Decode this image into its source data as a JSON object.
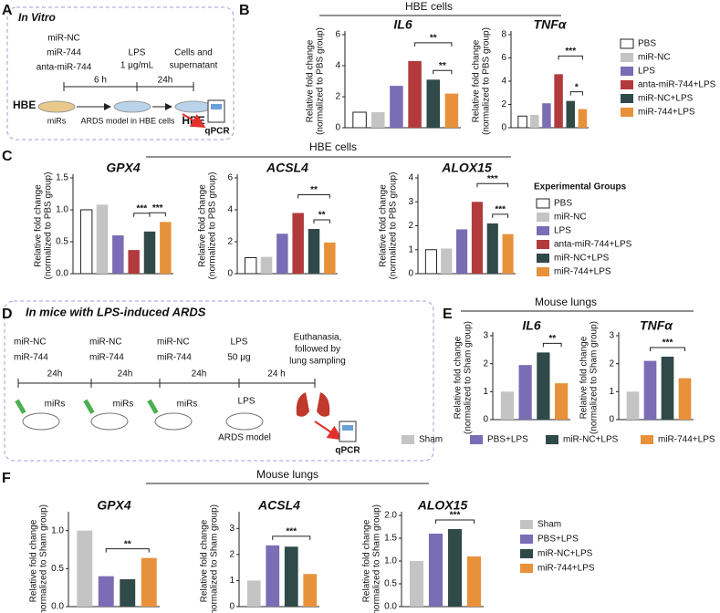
{
  "panel_labels": [
    "A",
    "B",
    "C",
    "D",
    "E",
    "F"
  ],
  "group_headers": [
    "HBE cells",
    "HBE cells",
    "Mouse lungs",
    "Mouse lungs"
  ],
  "panel_a": {
    "title": "In Vitro",
    "treatments": [
      "miR-NC",
      "miR-744",
      "anta-miR-744"
    ],
    "lps": "LPS",
    "lps_dose": "1 μg/mL",
    "cells": [
      "Cells and",
      "supernatant"
    ],
    "time1": "6 h",
    "time2": "24h",
    "hbe1": "HBE",
    "mirs": "miRs",
    "ards": "ARDS model in HBE cells",
    "hbe2": "HBE",
    "qpcr": "qPCR"
  },
  "panel_d": {
    "title": "In mice with LPS-induced ARDS",
    "treat1": [
      "miR-NC",
      "miR-744"
    ],
    "treat2": [
      "miR-NC",
      "miR-744"
    ],
    "treat3": [
      "miR-NC",
      "miR-744"
    ],
    "lps": [
      "LPS",
      "50 μg"
    ],
    "end": [
      "Euthanasia,",
      "followed by",
      "lung sampling"
    ],
    "times": [
      "24h",
      "24h",
      "24h",
      "24 h"
    ],
    "mirs": [
      "miRs",
      "miRs",
      "miRs"
    ],
    "lps_mouse": "LPS",
    "ards": "ARDS model",
    "qpcr": "qPCR"
  },
  "legends": [
    {
      "items": [
        {
          "name": "PBS",
          "color": "#ffffff"
        },
        {
          "name": "miR-NC",
          "color": "#c4c4c4"
        },
        {
          "name": "LPS",
          "color": "#7a6cb5"
        },
        {
          "name": "anta-miR-744+LPS",
          "color": "#b23a3c"
        },
        {
          "name": "miR-NC+LPS",
          "color": "#2f4a48"
        },
        {
          "name": "miR-744+LPS",
          "color": "#e8913b"
        }
      ]
    },
    {
      "title": "Experimental Groups",
      "items": [
        {
          "name": "PBS",
          "color": "#ffffff"
        },
        {
          "name": "miR-NC",
          "color": "#c4c4c4"
        },
        {
          "name": "LPS",
          "color": "#7a6cb5"
        },
        {
          "name": "anta-miR-744+LPS",
          "color": "#b23a3c"
        },
        {
          "name": "miR-NC+LPS",
          "color": "#2f4a48"
        },
        {
          "name": "miR-744+LPS",
          "color": "#e8913b"
        }
      ]
    },
    {
      "items": [
        {
          "name": "Sham",
          "color": "#c4c4c4"
        },
        {
          "name": "PBS+LPS",
          "color": "#7a6cb5"
        },
        {
          "name": "miR-NC+LPS",
          "color": "#2f4a48"
        },
        {
          "name": "miR-744+LPS",
          "color": "#e8913b"
        }
      ]
    },
    {
      "items": [
        {
          "name": "Sham",
          "color": "#c4c4c4"
        },
        {
          "name": "PBS+LPS",
          "color": "#7a6cb5"
        },
        {
          "name": "miR-NC+LPS",
          "color": "#2f4a48"
        },
        {
          "name": "miR-744+LPS",
          "color": "#e8913b"
        }
      ]
    }
  ],
  "chart_data": [
    {
      "type": "bar",
      "title": "IL6",
      "y_label": [
        "Relative fold change",
        "(normalized to PBS group)"
      ],
      "values": [
        1.0,
        1.0,
        2.7,
        4.3,
        3.1,
        2.2
      ],
      "colors": [
        "#ffffff",
        "#c4c4c4",
        "#7a6cb5",
        "#b23a3c",
        "#2f4a48",
        "#e8913b"
      ],
      "ylim": [
        0,
        6
      ],
      "yticks": [
        0,
        2,
        4,
        6
      ],
      "annotations": [
        "**",
        "**"
      ]
    },
    {
      "type": "bar",
      "title": "TNFα",
      "y_label": [
        "Relative fold change",
        "(normalized to PBS group)"
      ],
      "values": [
        1.0,
        1.1,
        2.1,
        4.6,
        2.3,
        1.6
      ],
      "colors": [
        "#ffffff",
        "#c4c4c4",
        "#7a6cb5",
        "#b23a3c",
        "#2f4a48",
        "#e8913b"
      ],
      "ylim": [
        0,
        8
      ],
      "yticks": [
        0,
        2,
        4,
        6,
        8
      ],
      "annotations": [
        "***",
        "*"
      ]
    },
    {
      "type": "bar",
      "title": "GPX4",
      "y_label": [
        "Relative fold change",
        "(normalized to PBS group)"
      ],
      "values": [
        1.0,
        1.08,
        0.6,
        0.37,
        0.66,
        0.81
      ],
      "colors": [
        "#ffffff",
        "#c4c4c4",
        "#7a6cb5",
        "#b23a3c",
        "#2f4a48",
        "#e8913b"
      ],
      "ylim": [
        0,
        1.5
      ],
      "yticks": [
        {
          "value": 0,
          "label": "0.0"
        },
        {
          "value": 0.5,
          "label": "0.5"
        },
        {
          "value": 1,
          "label": "1.0"
        },
        {
          "value": 1.5,
          "label": "1.5"
        }
      ],
      "annotations": [
        "***",
        "***"
      ]
    },
    {
      "type": "bar",
      "title": "ACSL4",
      "y_label": [
        "Relative fold change",
        "(normalized to PBS group)"
      ],
      "values": [
        1.0,
        1.05,
        2.5,
        3.8,
        2.8,
        1.95
      ],
      "colors": [
        "#ffffff",
        "#c4c4c4",
        "#7a6cb5",
        "#b23a3c",
        "#2f4a48",
        "#e8913b"
      ],
      "ylim": [
        0,
        6
      ],
      "yticks": [
        0,
        2,
        4,
        6
      ],
      "annotations": [
        "**",
        "**"
      ]
    },
    {
      "type": "bar",
      "title": "ALOX15",
      "y_label": [
        "Relative fold change",
        "(normalized to PBS group)"
      ],
      "values": [
        1.0,
        1.05,
        1.85,
        3.0,
        2.1,
        1.65
      ],
      "colors": [
        "#ffffff",
        "#c4c4c4",
        "#7a6cb5",
        "#b23a3c",
        "#2f4a48",
        "#e8913b"
      ],
      "ylim": [
        0,
        4
      ],
      "yticks": [
        0,
        1,
        2,
        3,
        4
      ],
      "annotations": [
        "***",
        "***"
      ]
    },
    {
      "type": "bar",
      "title": "IL6",
      "y_label": [
        "Relative fold change",
        "(normalized to Sham group)"
      ],
      "values": [
        1.0,
        1.95,
        2.4,
        1.3
      ],
      "colors": [
        "#c4c4c4",
        "#7a6cb5",
        "#2f4a48",
        "#e8913b"
      ],
      "ylim": [
        0,
        3
      ],
      "yticks": [
        0,
        1,
        2,
        3
      ],
      "annotations": [
        "**"
      ]
    },
    {
      "type": "bar",
      "title": "TNFα",
      "y_label": [
        "Relative fold change",
        "(normalized to Sham group)"
      ],
      "values": [
        1.0,
        2.1,
        2.25,
        1.48
      ],
      "colors": [
        "#c4c4c4",
        "#7a6cb5",
        "#2f4a48",
        "#e8913b"
      ],
      "ylim": [
        0,
        3
      ],
      "yticks": [
        0,
        1,
        2,
        3
      ],
      "annotations": [
        "***"
      ]
    },
    {
      "type": "bar",
      "title": "GPX4",
      "y_label": [
        "Relative fold change",
        "(normalized to Sham group)"
      ],
      "values": [
        1.0,
        0.4,
        0.36,
        0.64
      ],
      "colors": [
        "#c4c4c4",
        "#7a6cb5",
        "#2f4a48",
        "#e8913b"
      ],
      "ylim": [
        0,
        1.2
      ],
      "yticks": [
        {
          "value": 0,
          "label": "0.0"
        },
        {
          "value": 0.5,
          "label": "0.5"
        },
        {
          "value": 1,
          "label": "1.0"
        }
      ],
      "annotations": [
        "**"
      ]
    },
    {
      "type": "bar",
      "title": "ACSL4",
      "y_label": [
        "Relative fold change",
        "(normalized to Sham group)"
      ],
      "values": [
        1.0,
        2.35,
        2.3,
        1.25
      ],
      "colors": [
        "#c4c4c4",
        "#7a6cb5",
        "#2f4a48",
        "#e8913b"
      ],
      "ylim": [
        0,
        3.5
      ],
      "yticks": [
        0,
        1,
        2,
        3
      ],
      "annotations": [
        "***"
      ]
    },
    {
      "type": "bar",
      "title": "ALOX15",
      "y_label": [
        "Relative fold change",
        "(normalized to Sham group)"
      ],
      "values": [
        1.0,
        1.6,
        1.7,
        1.1
      ],
      "colors": [
        "#c4c4c4",
        "#7a6cb5",
        "#2f4a48",
        "#e8913b"
      ],
      "ylim": [
        0,
        2.0
      ],
      "yticks": [
        {
          "value": 0,
          "label": "0.0"
        },
        {
          "value": 0.5,
          "label": "0.5"
        },
        {
          "value": 1,
          "label": "1.0"
        },
        {
          "value": 1.5,
          "label": "1.5"
        },
        {
          "value": 2,
          "label": "2.0"
        }
      ],
      "annotations": [
        "***"
      ]
    }
  ]
}
